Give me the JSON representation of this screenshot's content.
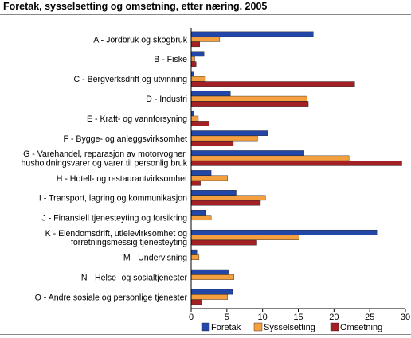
{
  "chart_data": {
    "type": "bar",
    "orientation": "horizontal",
    "title": "Foretak, sysselsetting og omsetning, etter næring. 2005",
    "xlabel": "",
    "ylabel": "",
    "xlim": [
      0,
      30
    ],
    "xticks": [
      0,
      5,
      10,
      15,
      20,
      25,
      30
    ],
    "grid": false,
    "legend_position": "bottom",
    "categories": [
      [
        "A - Jordbruk og skogbruk"
      ],
      [
        "B - Fiske"
      ],
      [
        "C - Bergverksdrift og utvinning"
      ],
      [
        "D - Industri"
      ],
      [
        "E - Kraft- og vannforsyning"
      ],
      [
        "F - Bygge- og anleggsvirksomhet"
      ],
      [
        "G - Varehandel, reparasjon av motorvogner,",
        "husholdningsvarer og varer til personlig bruk"
      ],
      [
        "H - Hotell- og restaurantvirksomhet"
      ],
      [
        "I - Transport, lagring og kommunikasjon"
      ],
      [
        "J - Finansiell tjenesteyting og forsikring"
      ],
      [
        "K - Eiendomsdrift, utleievirksomhet og",
        "forretningsmessig tjenesteyting"
      ],
      [
        "M - Undervisning"
      ],
      [
        "N - Helse- og sosialtjenester"
      ],
      [
        "O - Andre sosiale og personlige tjenester"
      ]
    ],
    "series": [
      {
        "name": "Foretak",
        "color": "#2347a8",
        "values": [
          17.1,
          1.8,
          0.3,
          5.5,
          0.3,
          10.7,
          15.8,
          2.8,
          6.3,
          2.1,
          26.0,
          0.8,
          5.2,
          5.8
        ]
      },
      {
        "name": "Sysselsetting",
        "color": "#f5a040",
        "values": [
          4.0,
          0.5,
          2.0,
          16.2,
          1.0,
          9.3,
          22.1,
          5.1,
          10.4,
          2.8,
          15.1,
          1.1,
          6.0,
          5.1
        ]
      },
      {
        "name": "Omsetning",
        "color": "#a32025",
        "values": [
          1.2,
          0.7,
          22.9,
          16.4,
          2.5,
          5.9,
          29.5,
          1.3,
          9.7,
          0.0,
          9.2,
          0.0,
          0.0,
          1.5
        ]
      }
    ]
  }
}
